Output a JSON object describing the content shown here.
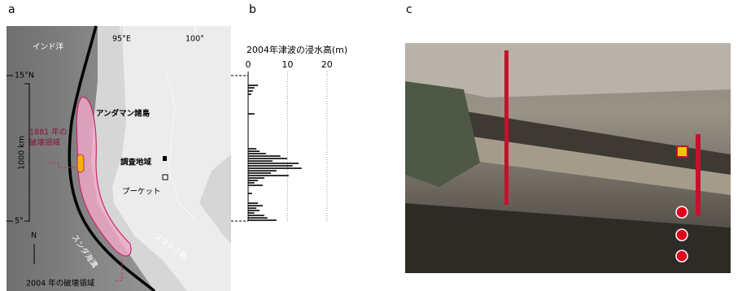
{
  "panels": {
    "a": "a",
    "b": "b",
    "c": "c"
  },
  "map": {
    "sea": "インド洋",
    "lon_95": "95°E",
    "lon_100": "100°",
    "lat_15": "15°N",
    "lat_5": "5°",
    "scale": "1000 km",
    "north": "N",
    "andaman": "アンダマン諸島",
    "rupture_1881": [
      "1881 年の",
      "破壊領域"
    ],
    "study_area": "調査地域",
    "phuket": "プーケット",
    "sumatra": "スマトラ島",
    "trench": "スンダ海溝",
    "rupture_2004": "2004 年の破壊領域"
  },
  "chart_data": {
    "type": "hbar",
    "title": "2004年津波の浸水高(m)",
    "color": "#000000",
    "latitudes": [
      14.33,
      14.16,
      13.94,
      13.72,
      12.37,
      9.97,
      9.8,
      9.64,
      9.47,
      9.3,
      9.13,
      8.97,
      8.8,
      8.63,
      8.46,
      8.3,
      8.13,
      7.96,
      7.79,
      7.63,
      7.46,
      6.9,
      6.23,
      6.06,
      5.89,
      5.73,
      5.56,
      5.39,
      5.22,
      5.06
    ],
    "values": [
      2.5,
      1.6,
      1.2,
      0.8,
      1.6,
      2.1,
      2.9,
      4.5,
      8.2,
      9.9,
      6.2,
      12.8,
      11.3,
      13.6,
      7.2,
      5.8,
      10.3,
      4.1,
      2.5,
      1.6,
      3.7,
      1.0,
      2.5,
      3.7,
      2.1,
      2.9,
      1.6,
      4.1,
      4.9,
      7.2
    ],
    "xlim": [
      0,
      25
    ],
    "xticks": [
      0,
      10,
      20
    ],
    "ylim": [
      5,
      15
    ],
    "grid": true
  }
}
